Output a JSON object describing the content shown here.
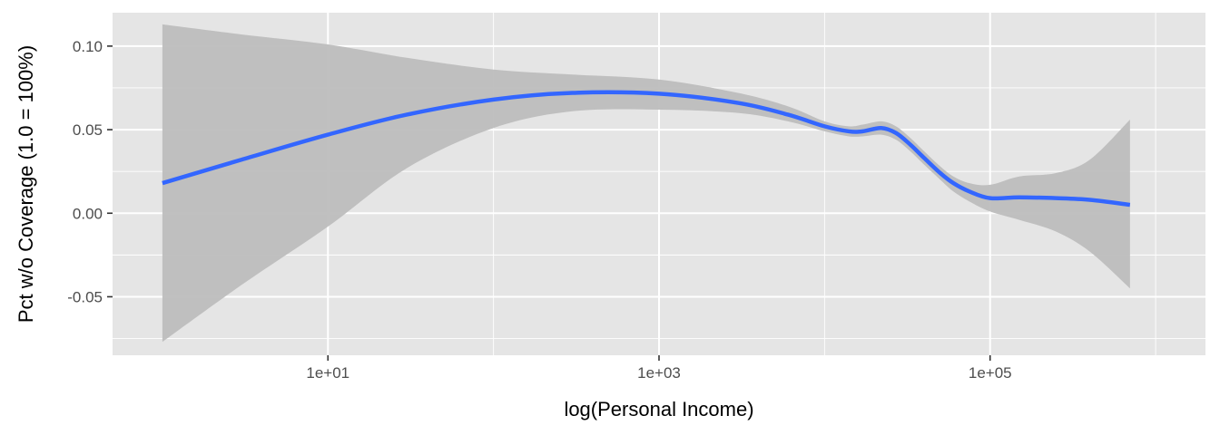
{
  "chart_data": {
    "type": "line",
    "title": "",
    "xlabel": "log(Personal Income)",
    "ylabel": "Pct w/o Coverage (1.0 = 100%)",
    "x_scale": "log10",
    "xlim": [
      0.5,
      2000000
    ],
    "ylim": [
      -0.085,
      0.12
    ],
    "x_ticks": [
      {
        "value": 10,
        "label": "1e+01"
      },
      {
        "value": 1000,
        "label": "1e+03"
      },
      {
        "value": 100000,
        "label": "1e+05"
      }
    ],
    "x_minor_ticks": [
      100,
      10000,
      1000000
    ],
    "y_ticks": [
      {
        "value": 0.1,
        "label": "0.10"
      },
      {
        "value": 0.05,
        "label": "0.05"
      },
      {
        "value": 0.0,
        "label": "0.00"
      },
      {
        "value": -0.05,
        "label": "-0.05"
      }
    ],
    "y_minor_ticks": [
      0.075,
      0.025,
      -0.025,
      -0.075
    ],
    "grid": true,
    "legend": "none",
    "colors": {
      "panel": "#e5e5e5",
      "grid": "#ffffff",
      "line": "#3366ff",
      "ribbon": "#bdbdbd"
    },
    "series": [
      {
        "x": [
          1,
          3,
          10,
          30,
          100,
          300,
          1000,
          3000,
          6000,
          10000,
          14000,
          17000,
          22000,
          27000,
          33000,
          40000,
          50000,
          60000,
          75000,
          100000,
          150000,
          250000,
          400000,
          700000
        ],
        "y": [
          0.018,
          0.032,
          0.047,
          0.059,
          0.068,
          0.072,
          0.0715,
          0.066,
          0.059,
          0.052,
          0.049,
          0.049,
          0.051,
          0.048,
          0.041,
          0.033,
          0.024,
          0.018,
          0.013,
          0.009,
          0.0095,
          0.009,
          0.008,
          0.005
        ],
        "ymin": [
          -0.077,
          -0.043,
          -0.008,
          0.027,
          0.051,
          0.061,
          0.062,
          0.06,
          0.055,
          0.049,
          0.046,
          0.046,
          0.047,
          0.044,
          0.037,
          0.029,
          0.02,
          0.013,
          0.007,
          0.001,
          -0.004,
          -0.011,
          -0.023,
          -0.045
        ],
        "ymax": [
          0.113,
          0.107,
          0.101,
          0.093,
          0.086,
          0.083,
          0.08,
          0.072,
          0.064,
          0.055,
          0.052,
          0.053,
          0.055,
          0.052,
          0.045,
          0.037,
          0.028,
          0.022,
          0.018,
          0.017,
          0.022,
          0.024,
          0.032,
          0.056
        ]
      }
    ]
  }
}
